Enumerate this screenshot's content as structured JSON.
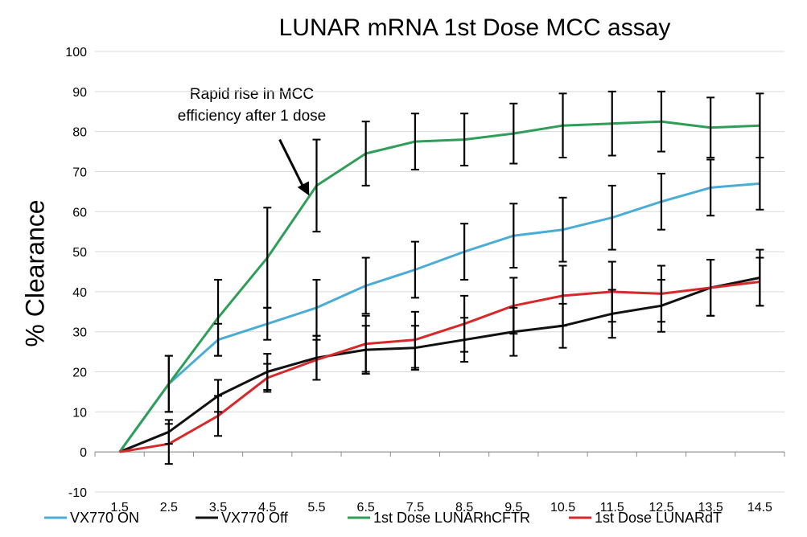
{
  "chart_data": {
    "type": "line",
    "title": "LUNAR mRNA 1st Dose MCC assay",
    "xlabel": "",
    "ylabel": "% Clearance",
    "x": [
      1.5,
      2.5,
      3.5,
      4.5,
      5.5,
      6.5,
      7.5,
      8.5,
      9.5,
      10.5,
      11.5,
      12.5,
      13.5,
      14.5
    ],
    "x_tick_labels": [
      "1.5",
      "2.5",
      "3.5",
      "4.5",
      "5.5",
      "6.5",
      "7.5",
      "8.5",
      "9.5",
      "10.5",
      "11.5",
      "12.5",
      "13.5",
      "14.5"
    ],
    "ylim": [
      -10,
      100
    ],
    "y_ticks": [
      -10,
      0,
      10,
      20,
      30,
      40,
      50,
      60,
      70,
      80,
      90,
      100
    ],
    "grid": "horizontal",
    "legend_position": "bottom",
    "annotation": {
      "line1": "Rapid rise in MCC",
      "line2": "efficiency after 1 dose",
      "arrow_from": [
        4.75,
        78
      ],
      "arrow_to": [
        5.35,
        64
      ]
    },
    "series": [
      {
        "name": "VX770 ON",
        "color": "#4bacd6",
        "values": [
          0,
          17,
          28,
          32,
          36,
          41.5,
          45.5,
          50,
          54,
          55.5,
          58.5,
          62.5,
          66,
          67
        ],
        "errors": [
          0,
          7,
          4,
          4,
          7,
          7,
          7,
          7,
          8,
          8,
          8,
          7,
          7,
          6.5
        ]
      },
      {
        "name": "VX770 Off",
        "color": "#111111",
        "values": [
          0,
          5,
          14,
          20,
          23.5,
          25.5,
          26,
          28,
          30,
          31.5,
          34.5,
          36.5,
          41,
          43.5
        ],
        "errors": [
          0,
          3,
          4,
          4.5,
          5.5,
          6,
          5.5,
          5.5,
          6,
          5.5,
          6,
          6.5,
          7,
          7
        ]
      },
      {
        "name": "1st Dose LUNARhCFTR",
        "color": "#2e9e58",
        "values": [
          0,
          17,
          33.5,
          48.5,
          66.5,
          74.5,
          77.5,
          78,
          79.5,
          81.5,
          82,
          82.5,
          81,
          81.5
        ],
        "errors": [
          0,
          7,
          9.5,
          12.5,
          11.5,
          8,
          7,
          6.5,
          7.5,
          8,
          8,
          7.5,
          7.5,
          8
        ]
      },
      {
        "name": "1st Dose LUNARdT",
        "color": "#d7282a",
        "values": [
          0,
          2,
          9,
          18.5,
          23,
          27,
          28,
          32,
          36.5,
          39,
          40,
          39.5,
          41,
          42.5
        ],
        "errors": [
          0,
          5,
          5,
          3.5,
          5,
          7,
          7,
          7,
          7,
          7.5,
          7.5,
          7,
          7,
          6
        ]
      }
    ]
  }
}
